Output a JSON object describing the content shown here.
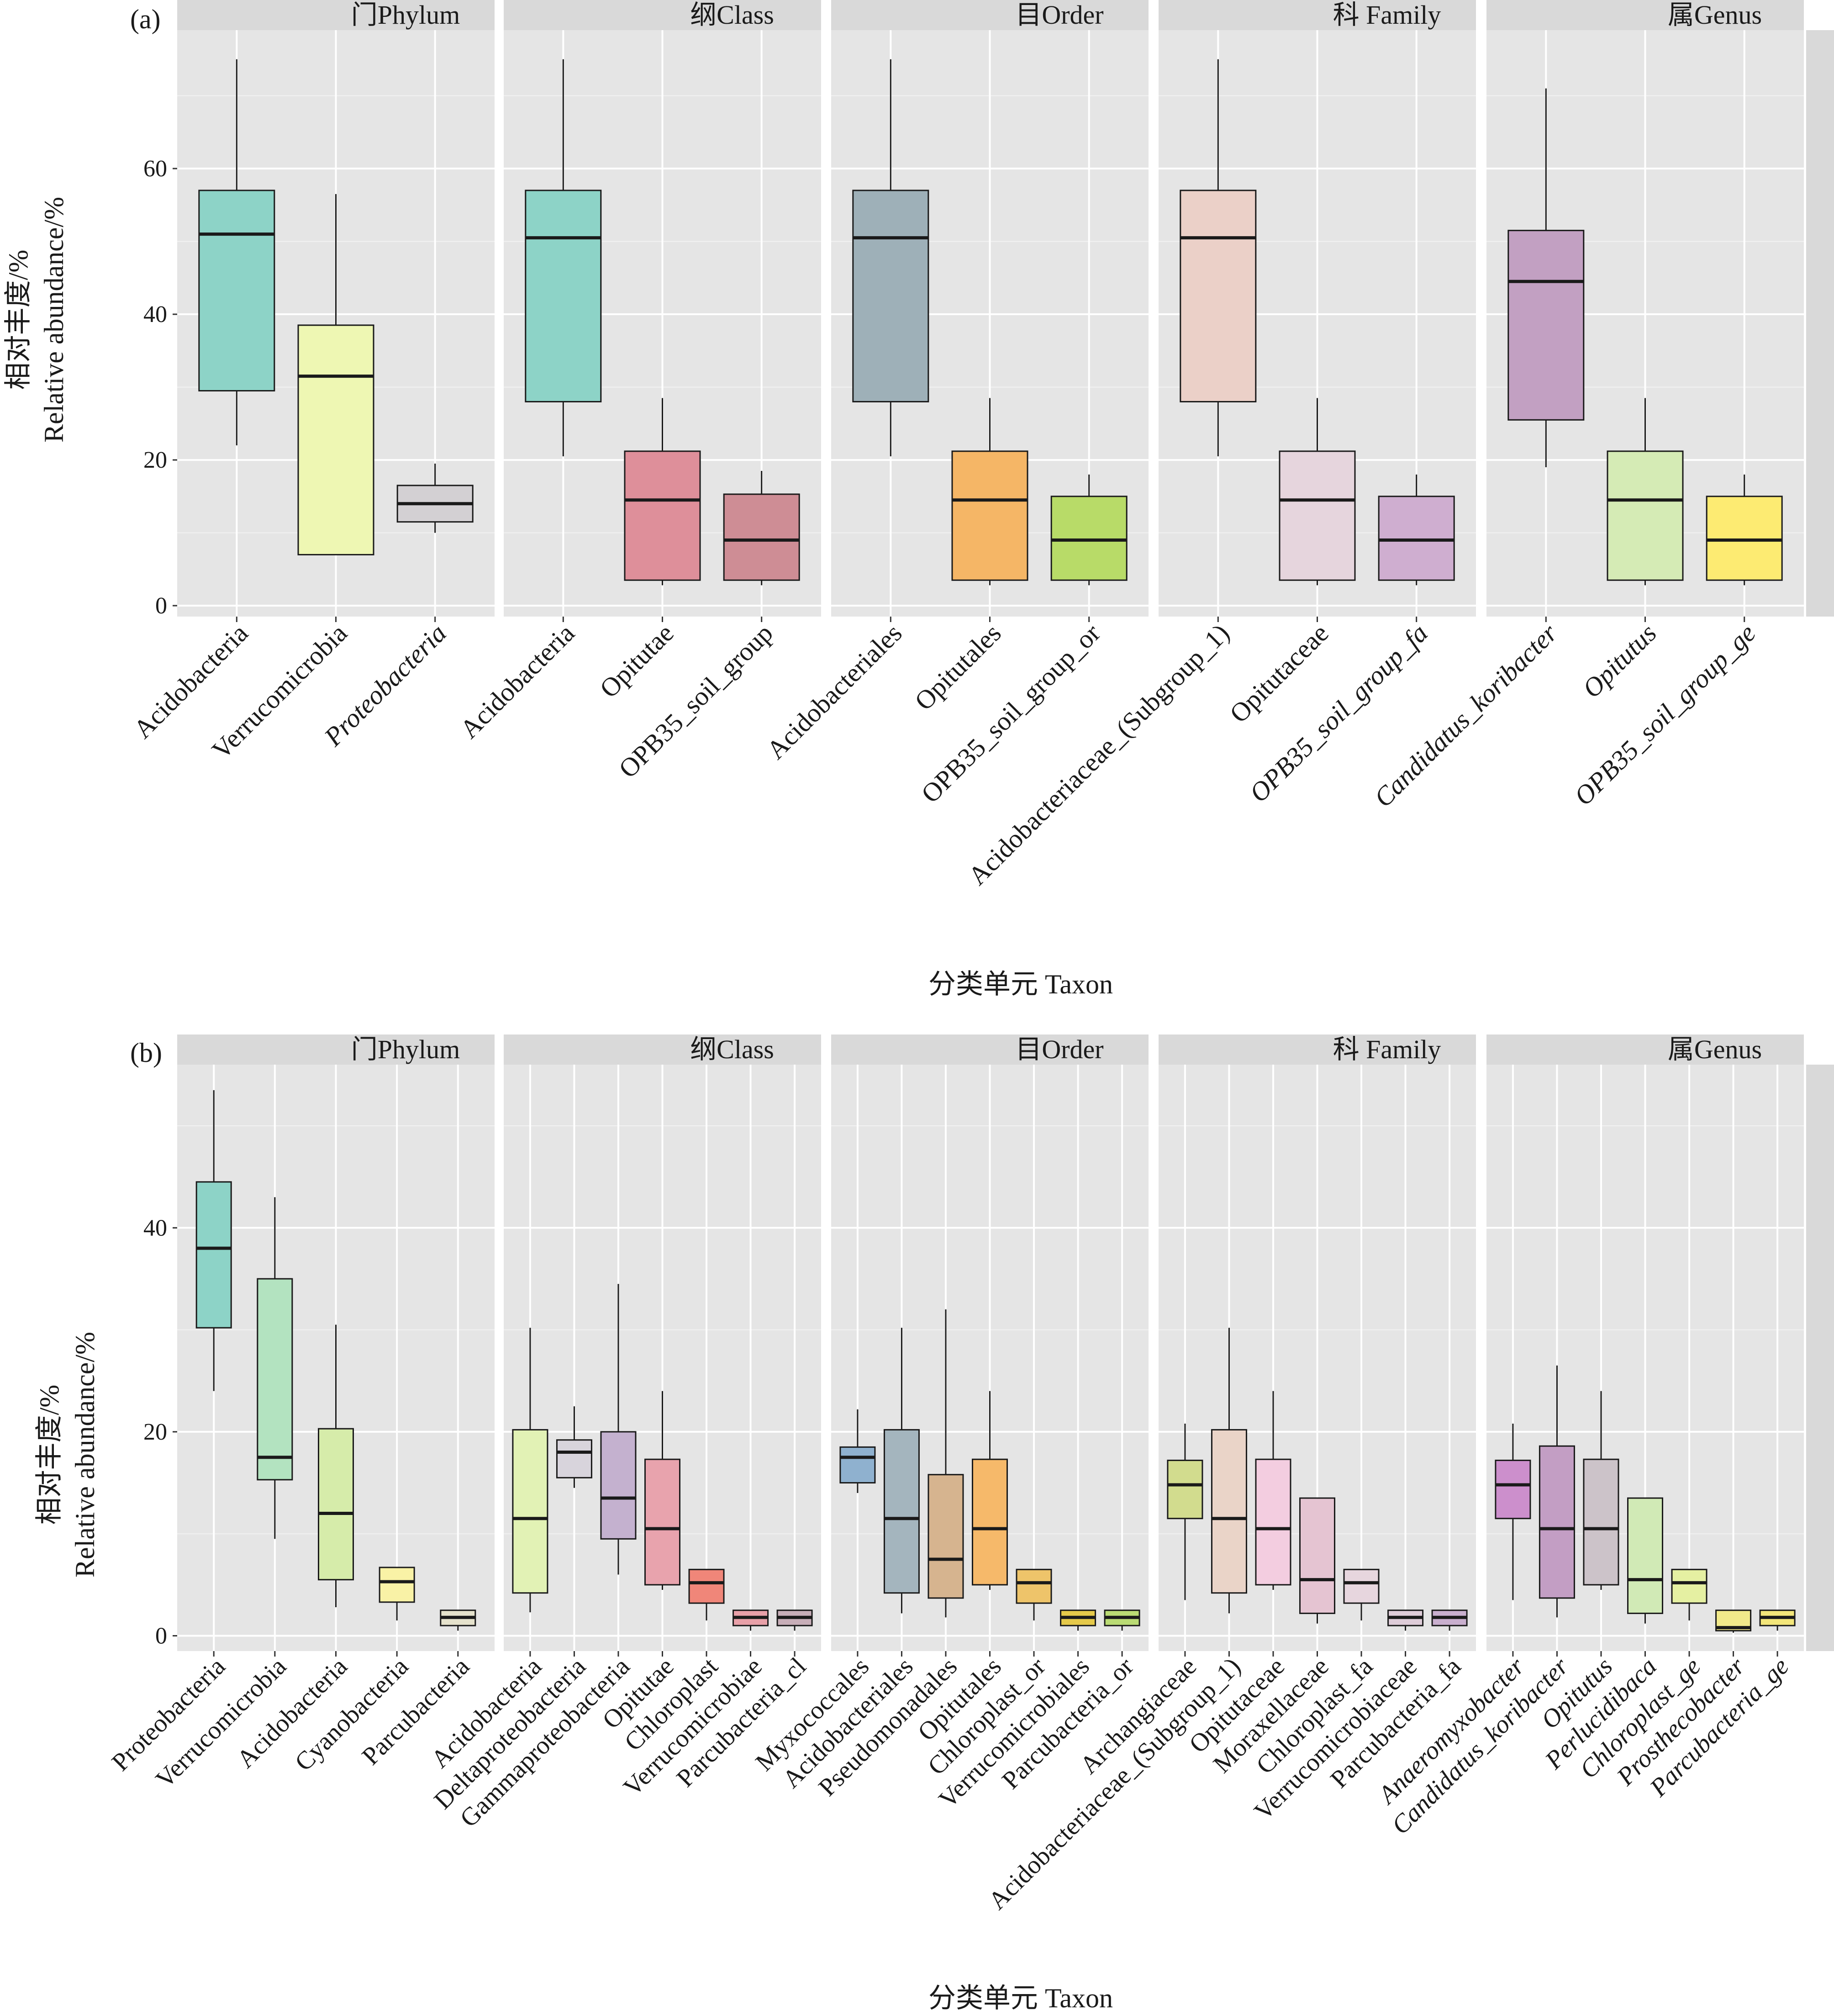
{
  "chart_data": [
    {
      "type": "box",
      "panel_label": "(a)",
      "xlabel": "分类单元 Taxon",
      "ylabel_lines": [
        "相对丰度/%",
        "Relative abundance/%"
      ],
      "ylim": [
        -1.5,
        79
      ],
      "yticks": [
        0,
        20,
        40,
        60
      ],
      "facets": [
        {
          "title": "门Phylum",
          "boxes": [
            {
              "label": "Acidobacteria",
              "italic": false,
              "color": "#8DD3C7",
              "whisker_low": 22,
              "q1": 29.5,
              "median": 51,
              "q3": 57,
              "whisker_high": 75
            },
            {
              "label": "Verrucomicrobia",
              "italic": false,
              "color": "#EEF7B3",
              "whisker_low": 7,
              "q1": 7,
              "median": 31.5,
              "q3": 38.5,
              "whisker_high": 56.5
            },
            {
              "label": "Proteobacteria",
              "italic": true,
              "color": "#D3D0D3",
              "whisker_low": 10,
              "q1": 11.5,
              "median": 14,
              "q3": 16.5,
              "whisker_high": 19.5
            }
          ]
        },
        {
          "title": "纲Class",
          "boxes": [
            {
              "label": "Acidobacteria",
              "italic": false,
              "color": "#8DD3C7",
              "whisker_low": 20.5,
              "q1": 28,
              "median": 50.5,
              "q3": 57,
              "whisker_high": 75
            },
            {
              "label": "Opitutae",
              "italic": false,
              "color": "#DE8F9A",
              "whisker_low": 2.8,
              "q1": 3.5,
              "median": 14.5,
              "q3": 21.2,
              "whisker_high": 28.5
            },
            {
              "label": "OPB35_soil_group",
              "italic": false,
              "color": "#CE8D95",
              "whisker_low": 2.8,
              "q1": 3.5,
              "median": 9,
              "q3": 15.3,
              "whisker_high": 18.5
            }
          ]
        },
        {
          "title": "目Order",
          "boxes": [
            {
              "label": "Acidobacteriales",
              "italic": false,
              "color": "#9EB0B8",
              "whisker_low": 20.5,
              "q1": 28,
              "median": 50.5,
              "q3": 57,
              "whisker_high": 75
            },
            {
              "label": "Opitutales",
              "italic": false,
              "color": "#F5B666",
              "whisker_low": 2.8,
              "q1": 3.5,
              "median": 14.5,
              "q3": 21.2,
              "whisker_high": 28.5
            },
            {
              "label": "OPB35_soil_group_or",
              "italic": false,
              "color": "#B8DB68",
              "whisker_low": 2.8,
              "q1": 3.5,
              "median": 9,
              "q3": 15,
              "whisker_high": 18
            }
          ]
        },
        {
          "title": "科 Family",
          "boxes": [
            {
              "label": "Acidobacteriaceae_(Subgroup_1)",
              "italic": false,
              "color": "#EBD0C8",
              "whisker_low": 20.5,
              "q1": 28,
              "median": 50.5,
              "q3": 57,
              "whisker_high": 75
            },
            {
              "label": "Opitutaceae",
              "italic": false,
              "color": "#E6D5DD",
              "whisker_low": 2.8,
              "q1": 3.5,
              "median": 14.5,
              "q3": 21.2,
              "whisker_high": 28.5
            },
            {
              "label": "OPB35_soil_group_fa",
              "italic": true,
              "color": "#CFAED0",
              "whisker_low": 2.8,
              "q1": 3.5,
              "median": 9,
              "q3": 15,
              "whisker_high": 18
            }
          ]
        },
        {
          "title": "属Genus",
          "boxes": [
            {
              "label": "Candidatus_koribacter",
              "italic": true,
              "color": "#C2A0C2",
              "whisker_low": 19,
              "q1": 25.5,
              "median": 44.5,
              "q3": 51.5,
              "whisker_high": 71
            },
            {
              "label": "Opitutus",
              "italic": true,
              "color": "#D5EBB5",
              "whisker_low": 2.8,
              "q1": 3.5,
              "median": 14.5,
              "q3": 21.2,
              "whisker_high": 28.5
            },
            {
              "label": "OPB35_soil_group_ge",
              "italic": true,
              "color": "#FDEB72",
              "whisker_low": 2.8,
              "q1": 3.5,
              "median": 9,
              "q3": 15,
              "whisker_high": 18
            }
          ]
        }
      ]
    },
    {
      "type": "box",
      "panel_label": "(b)",
      "xlabel": "分类单元 Taxon",
      "ylabel_lines": [
        "相对丰度/%",
        "Relative abundance/%"
      ],
      "ylim": [
        -1.5,
        56
      ],
      "yticks": [
        0,
        20,
        40
      ],
      "facets": [
        {
          "title": "门Phylum",
          "boxes": [
            {
              "label": "Proteobacteria",
              "italic": false,
              "color": "#8DD3C7",
              "whisker_low": 24,
              "q1": 30.2,
              "median": 38,
              "q3": 44.5,
              "whisker_high": 53.5
            },
            {
              "label": "Verrucomicrobia",
              "italic": false,
              "color": "#B3E3C0",
              "whisker_low": 9.5,
              "q1": 15.3,
              "median": 17.5,
              "q3": 35,
              "whisker_high": 43
            },
            {
              "label": "Acidobacteria",
              "italic": false,
              "color": "#D6ECAA",
              "whisker_low": 2.8,
              "q1": 5.5,
              "median": 12,
              "q3": 20.3,
              "whisker_high": 30.5
            },
            {
              "label": "Cyanobacteria",
              "italic": false,
              "color": "#F9F2A6",
              "whisker_low": 1.5,
              "q1": 3.3,
              "median": 5.3,
              "q3": 6.7,
              "whisker_high": 6.7
            },
            {
              "label": "Parcubacteria",
              "italic": false,
              "color": "#E5E2CC",
              "whisker_low": 0.5,
              "q1": 1,
              "median": 1.8,
              "q3": 2.5,
              "whisker_high": 2.5
            }
          ]
        },
        {
          "title": "纲Class",
          "boxes": [
            {
              "label": "Acidobacteria",
              "italic": false,
              "color": "#E2F2B5",
              "whisker_low": 2.3,
              "q1": 4.2,
              "median": 11.5,
              "q3": 20.2,
              "whisker_high": 30.2
            },
            {
              "label": "Deltaproteobacteria",
              "italic": false,
              "color": "#D8D4DC",
              "whisker_low": 14.5,
              "q1": 15.5,
              "median": 18,
              "q3": 19.2,
              "whisker_high": 22.5
            },
            {
              "label": "Gammaproteobacteria",
              "italic": false,
              "color": "#C4B1CF",
              "whisker_low": 6,
              "q1": 9.5,
              "median": 13.5,
              "q3": 20,
              "whisker_high": 34.5
            },
            {
              "label": "Opitutae",
              "italic": false,
              "color": "#E8A3AD",
              "whisker_low": 4.5,
              "q1": 5,
              "median": 10.5,
              "q3": 17.3,
              "whisker_high": 24
            },
            {
              "label": "Chloroplast",
              "italic": false,
              "color": "#F08679",
              "whisker_low": 1.5,
              "q1": 3.2,
              "median": 5.2,
              "q3": 6.5,
              "whisker_high": 6.5
            },
            {
              "label": "Verrucomicrobiae",
              "italic": false,
              "color": "#E8A0A8",
              "whisker_low": 0.5,
              "q1": 1,
              "median": 1.8,
              "q3": 2.5,
              "whisker_high": 2.5
            },
            {
              "label": "Parcubacteria_cl",
              "italic": false,
              "color": "#C7AEB8",
              "whisker_low": 0.5,
              "q1": 1,
              "median": 1.8,
              "q3": 2.5,
              "whisker_high": 2.5
            }
          ]
        },
        {
          "title": "目Order",
          "boxes": [
            {
              "label": "Myxococcales",
              "italic": false,
              "color": "#8FB1CF",
              "whisker_low": 14,
              "q1": 15,
              "median": 17.5,
              "q3": 18.5,
              "whisker_high": 22.2
            },
            {
              "label": "Acidobacteriales",
              "italic": false,
              "color": "#A4B5BE",
              "whisker_low": 2.2,
              "q1": 4.2,
              "median": 11.5,
              "q3": 20.2,
              "whisker_high": 30.2
            },
            {
              "label": "Pseudomonadales",
              "italic": false,
              "color": "#D6B48F",
              "whisker_low": 1.8,
              "q1": 3.7,
              "median": 7.5,
              "q3": 15.8,
              "whisker_high": 32
            },
            {
              "label": "Opitutales",
              "italic": false,
              "color": "#F6B96A",
              "whisker_low": 4.5,
              "q1": 5,
              "median": 10.5,
              "q3": 17.3,
              "whisker_high": 24
            },
            {
              "label": "Chloroplast_or",
              "italic": false,
              "color": "#EEC46A",
              "whisker_low": 1.5,
              "q1": 3.2,
              "median": 5.2,
              "q3": 6.5,
              "whisker_high": 6.5
            },
            {
              "label": "Verrucomicrobiales",
              "italic": false,
              "color": "#E5C94A",
              "whisker_low": 0.5,
              "q1": 1,
              "median": 1.8,
              "q3": 2.5,
              "whisker_high": 2.5
            },
            {
              "label": "Parcubacteria_or",
              "italic": false,
              "color": "#BADB74",
              "whisker_low": 0.5,
              "q1": 1,
              "median": 1.8,
              "q3": 2.5,
              "whisker_high": 2.5
            }
          ]
        },
        {
          "title": "科 Family",
          "boxes": [
            {
              "label": "Archangiaceae",
              "italic": false,
              "color": "#D2DC8E",
              "whisker_low": 3.5,
              "q1": 11.5,
              "median": 14.8,
              "q3": 17.2,
              "whisker_high": 20.8
            },
            {
              "label": "Acidobacteriaceae_(Subgroup_1)",
              "italic": false,
              "color": "#EAD4C8",
              "whisker_low": 2.2,
              "q1": 4.2,
              "median": 11.5,
              "q3": 20.2,
              "whisker_high": 30.2
            },
            {
              "label": "Opitutaceae",
              "italic": false,
              "color": "#F3CDE0",
              "whisker_low": 4.5,
              "q1": 5,
              "median": 10.5,
              "q3": 17.3,
              "whisker_high": 24
            },
            {
              "label": "Moraxellaceae",
              "italic": false,
              "color": "#E5C4D2",
              "whisker_low": 1.2,
              "q1": 2.2,
              "median": 5.5,
              "q3": 13.5,
              "whisker_high": 13.5
            },
            {
              "label": "Chloroplast_fa",
              "italic": false,
              "color": "#E7D6DE",
              "whisker_low": 1.5,
              "q1": 3.2,
              "median": 5.2,
              "q3": 6.5,
              "whisker_high": 6.5
            },
            {
              "label": "Verrucomicrobiaceae",
              "italic": false,
              "color": "#DECCD8",
              "whisker_low": 0.5,
              "q1": 1,
              "median": 1.8,
              "q3": 2.5,
              "whisker_high": 2.5
            },
            {
              "label": "Parcubacteria_fa",
              "italic": false,
              "color": "#C9AFCE",
              "whisker_low": 0.5,
              "q1": 1,
              "median": 1.8,
              "q3": 2.5,
              "whisker_high": 2.5
            }
          ]
        },
        {
          "title": "属Genus",
          "boxes": [
            {
              "label": "Anaeromyxobacter",
              "italic": true,
              "color": "#CC8FCC",
              "whisker_low": 3.5,
              "q1": 11.5,
              "median": 14.8,
              "q3": 17.2,
              "whisker_high": 20.8
            },
            {
              "label": "Candidatus_koribacter",
              "italic": true,
              "color": "#C39EC4",
              "whisker_low": 1.8,
              "q1": 3.7,
              "median": 10.5,
              "q3": 18.6,
              "whisker_high": 26.5
            },
            {
              "label": "Opitutus",
              "italic": true,
              "color": "#CCC3C9",
              "whisker_low": 4.5,
              "q1": 5,
              "median": 10.5,
              "q3": 17.3,
              "whisker_high": 24
            },
            {
              "label": "Perlucidibaca",
              "italic": true,
              "color": "#D1EAB6",
              "whisker_low": 1.2,
              "q1": 2.2,
              "median": 5.5,
              "q3": 13.5,
              "whisker_high": 13.5
            },
            {
              "label": "Chloroplast_ge",
              "italic": true,
              "color": "#E5F0A2",
              "whisker_low": 1.5,
              "q1": 3.2,
              "median": 5.2,
              "q3": 6.5,
              "whisker_high": 6.5
            },
            {
              "label": "Prosthecobacter",
              "italic": true,
              "color": "#F1E98A",
              "whisker_low": 0.3,
              "q1": 0.5,
              "median": 0.8,
              "q3": 2.5,
              "whisker_high": 2.5
            },
            {
              "label": "Parcubacteria_ge",
              "italic": true,
              "color": "#F3E67A",
              "whisker_low": 0.5,
              "q1": 1,
              "median": 1.8,
              "q3": 2.5,
              "whisker_high": 2.5
            }
          ]
        }
      ]
    }
  ]
}
